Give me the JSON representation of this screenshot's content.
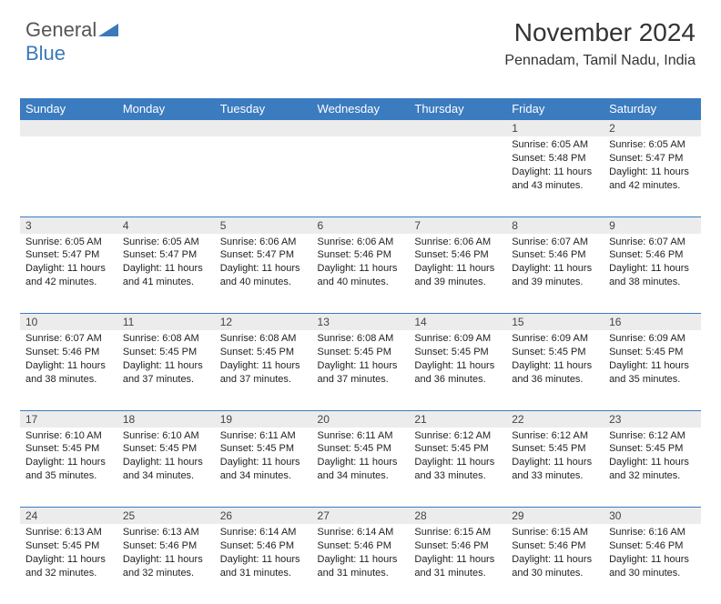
{
  "logo": {
    "word1": "General",
    "word2": "Blue"
  },
  "title": "November 2024",
  "location": "Pennadam, Tamil Nadu, India",
  "colors": {
    "header_bg": "#3b7bbf",
    "header_fg": "#ffffff",
    "daynum_bg": "#ececec",
    "body_bg": "#ffffff",
    "logo_gray": "#555555",
    "logo_blue": "#3a7ab8"
  },
  "weekdays": [
    "Sunday",
    "Monday",
    "Tuesday",
    "Wednesday",
    "Thursday",
    "Friday",
    "Saturday"
  ],
  "weeks": [
    {
      "nums": [
        "",
        "",
        "",
        "",
        "",
        "1",
        "2"
      ],
      "data": [
        null,
        null,
        null,
        null,
        null,
        {
          "sunrise": "6:05 AM",
          "sunset": "5:48 PM",
          "daylight": "11 hours and 43 minutes."
        },
        {
          "sunrise": "6:05 AM",
          "sunset": "5:47 PM",
          "daylight": "11 hours and 42 minutes."
        }
      ]
    },
    {
      "nums": [
        "3",
        "4",
        "5",
        "6",
        "7",
        "8",
        "9"
      ],
      "data": [
        {
          "sunrise": "6:05 AM",
          "sunset": "5:47 PM",
          "daylight": "11 hours and 42 minutes."
        },
        {
          "sunrise": "6:05 AM",
          "sunset": "5:47 PM",
          "daylight": "11 hours and 41 minutes."
        },
        {
          "sunrise": "6:06 AM",
          "sunset": "5:47 PM",
          "daylight": "11 hours and 40 minutes."
        },
        {
          "sunrise": "6:06 AM",
          "sunset": "5:46 PM",
          "daylight": "11 hours and 40 minutes."
        },
        {
          "sunrise": "6:06 AM",
          "sunset": "5:46 PM",
          "daylight": "11 hours and 39 minutes."
        },
        {
          "sunrise": "6:07 AM",
          "sunset": "5:46 PM",
          "daylight": "11 hours and 39 minutes."
        },
        {
          "sunrise": "6:07 AM",
          "sunset": "5:46 PM",
          "daylight": "11 hours and 38 minutes."
        }
      ]
    },
    {
      "nums": [
        "10",
        "11",
        "12",
        "13",
        "14",
        "15",
        "16"
      ],
      "data": [
        {
          "sunrise": "6:07 AM",
          "sunset": "5:46 PM",
          "daylight": "11 hours and 38 minutes."
        },
        {
          "sunrise": "6:08 AM",
          "sunset": "5:45 PM",
          "daylight": "11 hours and 37 minutes."
        },
        {
          "sunrise": "6:08 AM",
          "sunset": "5:45 PM",
          "daylight": "11 hours and 37 minutes."
        },
        {
          "sunrise": "6:08 AM",
          "sunset": "5:45 PM",
          "daylight": "11 hours and 37 minutes."
        },
        {
          "sunrise": "6:09 AM",
          "sunset": "5:45 PM",
          "daylight": "11 hours and 36 minutes."
        },
        {
          "sunrise": "6:09 AM",
          "sunset": "5:45 PM",
          "daylight": "11 hours and 36 minutes."
        },
        {
          "sunrise": "6:09 AM",
          "sunset": "5:45 PM",
          "daylight": "11 hours and 35 minutes."
        }
      ]
    },
    {
      "nums": [
        "17",
        "18",
        "19",
        "20",
        "21",
        "22",
        "23"
      ],
      "data": [
        {
          "sunrise": "6:10 AM",
          "sunset": "5:45 PM",
          "daylight": "11 hours and 35 minutes."
        },
        {
          "sunrise": "6:10 AM",
          "sunset": "5:45 PM",
          "daylight": "11 hours and 34 minutes."
        },
        {
          "sunrise": "6:11 AM",
          "sunset": "5:45 PM",
          "daylight": "11 hours and 34 minutes."
        },
        {
          "sunrise": "6:11 AM",
          "sunset": "5:45 PM",
          "daylight": "11 hours and 34 minutes."
        },
        {
          "sunrise": "6:12 AM",
          "sunset": "5:45 PM",
          "daylight": "11 hours and 33 minutes."
        },
        {
          "sunrise": "6:12 AM",
          "sunset": "5:45 PM",
          "daylight": "11 hours and 33 minutes."
        },
        {
          "sunrise": "6:12 AM",
          "sunset": "5:45 PM",
          "daylight": "11 hours and 32 minutes."
        }
      ]
    },
    {
      "nums": [
        "24",
        "25",
        "26",
        "27",
        "28",
        "29",
        "30"
      ],
      "data": [
        {
          "sunrise": "6:13 AM",
          "sunset": "5:45 PM",
          "daylight": "11 hours and 32 minutes."
        },
        {
          "sunrise": "6:13 AM",
          "sunset": "5:46 PM",
          "daylight": "11 hours and 32 minutes."
        },
        {
          "sunrise": "6:14 AM",
          "sunset": "5:46 PM",
          "daylight": "11 hours and 31 minutes."
        },
        {
          "sunrise": "6:14 AM",
          "sunset": "5:46 PM",
          "daylight": "11 hours and 31 minutes."
        },
        {
          "sunrise": "6:15 AM",
          "sunset": "5:46 PM",
          "daylight": "11 hours and 31 minutes."
        },
        {
          "sunrise": "6:15 AM",
          "sunset": "5:46 PM",
          "daylight": "11 hours and 30 minutes."
        },
        {
          "sunrise": "6:16 AM",
          "sunset": "5:46 PM",
          "daylight": "11 hours and 30 minutes."
        }
      ]
    }
  ],
  "labels": {
    "sunrise": "Sunrise:",
    "sunset": "Sunset:",
    "daylight": "Daylight:"
  }
}
